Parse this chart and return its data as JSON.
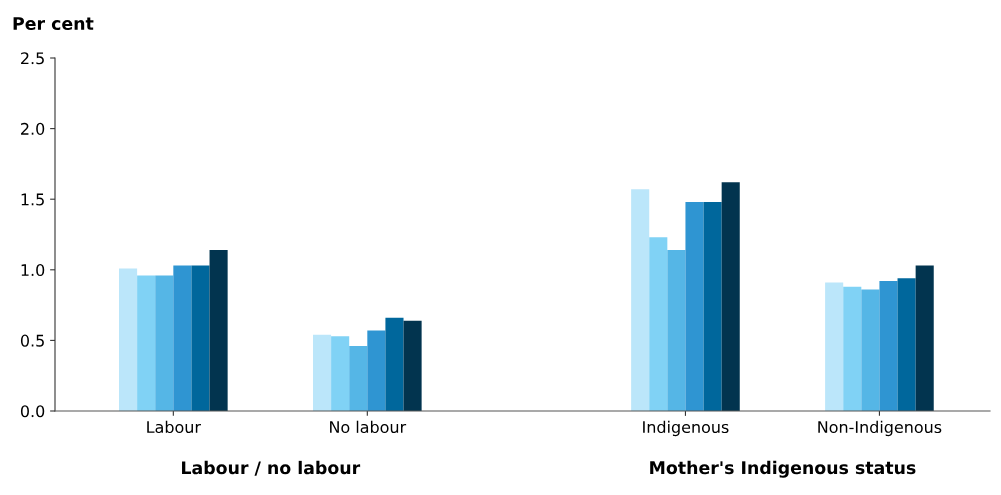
{
  "chart_data": {
    "type": "bar",
    "ylabel": "Per cent",
    "categories": [
      "Labour",
      "No labour",
      "Indigenous",
      "Non-Indigenous"
    ],
    "series": [
      {
        "color": "#bbe6fa",
        "values": [
          1.01,
          0.54,
          1.57,
          0.91
        ]
      },
      {
        "color": "#80d2f5",
        "values": [
          0.96,
          0.53,
          1.23,
          0.88
        ]
      },
      {
        "color": "#55b6e6",
        "values": [
          0.96,
          0.46,
          1.14,
          0.86
        ]
      },
      {
        "color": "#2f95d2",
        "values": [
          1.03,
          0.57,
          1.48,
          0.92
        ]
      },
      {
        "color": "#00679c",
        "values": [
          1.03,
          0.66,
          1.48,
          0.94
        ]
      },
      {
        "color": "#02344f",
        "values": [
          1.14,
          0.64,
          1.62,
          1.03
        ]
      }
    ],
    "ylim": [
      0,
      2.5
    ],
    "yticks": [
      {
        "value": 0,
        "label": "0.0"
      },
      {
        "value": 0.5,
        "label": "0.5"
      },
      {
        "value": 1,
        "label": "1.0"
      },
      {
        "value": 1.5,
        "label": "1.5"
      },
      {
        "value": 2,
        "label": "2.0"
      },
      {
        "value": 2.5,
        "label": "2.5"
      }
    ],
    "grid": false,
    "legend": false,
    "annotations": [
      "Labour / no labour",
      "Mother's Indigenous status"
    ]
  }
}
